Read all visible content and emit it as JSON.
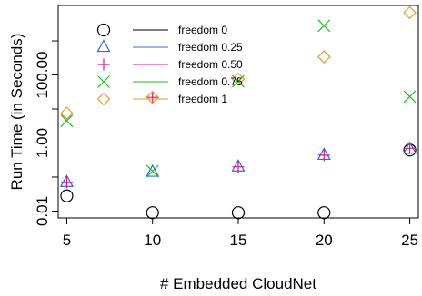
{
  "chart_data": {
    "type": "scatter",
    "title": "",
    "xlabel": "# Embedded CloudNet",
    "ylabel": "Run Time (in Seconds)",
    "x_ticks": [
      5,
      10,
      15,
      20,
      25
    ],
    "x_tick_labels": [
      "5",
      "10",
      "15",
      "20",
      "25"
    ],
    "y_scale": "log10",
    "y_ticks": [
      0.01,
      1,
      100
    ],
    "y_tick_labels": [
      "0.01",
      "1.00",
      "100.00"
    ],
    "xlim": [
      4.5,
      25.5
    ],
    "ylim": [
      0.0063,
      11000
    ],
    "grid": false,
    "legend_position": "top-left",
    "series": [
      {
        "name": "freedom 0",
        "marker": "circle",
        "color": "#000000",
        "x": [
          5,
          10,
          15,
          20,
          25
        ],
        "y": [
          0.028,
          0.009,
          0.009,
          0.009,
          0.62
        ]
      },
      {
        "name": "freedom 0.25",
        "marker": "triangle",
        "color": "#2f6fd6",
        "x": [
          5,
          10,
          15,
          20,
          25
        ],
        "y": [
          0.07,
          0.14,
          0.2,
          0.44,
          0.66
        ]
      },
      {
        "name": "freedom 0.50",
        "marker": "plus",
        "color": "#cc1f8a",
        "x": [
          5,
          10,
          15,
          20,
          25
        ],
        "y": [
          0.07,
          22,
          0.2,
          0.44,
          0.7
        ]
      },
      {
        "name": "freedom 0.75",
        "marker": "x",
        "color": "#22bb22",
        "x": [
          5,
          10,
          15,
          20,
          25
        ],
        "y": [
          4.5,
          0.15,
          65,
          2800,
          23
        ]
      },
      {
        "name": "freedom 1",
        "marker": "diamond",
        "color": "#e69a2e",
        "x": [
          5,
          10,
          15,
          20,
          25
        ],
        "y": [
          7.5,
          22,
          75,
          340,
          6800
        ]
      }
    ]
  }
}
